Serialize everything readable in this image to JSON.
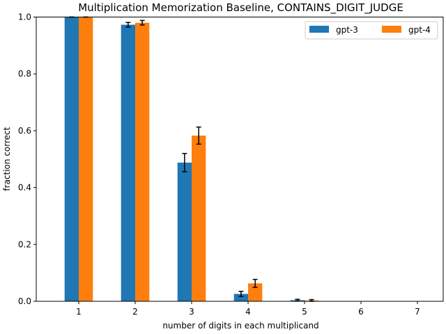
{
  "chart_data": {
    "type": "bar",
    "title": "Multiplication Memorization Baseline, CONTAINS_DIGIT_JUDGE",
    "xlabel": "number of digits in each multiplicand",
    "ylabel": "fraction correct",
    "categories": [
      "1",
      "2",
      "3",
      "4",
      "5",
      "6",
      "7"
    ],
    "ylim": [
      0,
      1.0
    ],
    "yticks": [
      "0.0",
      "0.2",
      "0.4",
      "0.6",
      "0.8",
      "1.0"
    ],
    "legend_position": "top-right",
    "grid": false,
    "series": [
      {
        "name": "gpt-3",
        "color": "#1f77b4",
        "values": [
          1.0,
          0.973,
          0.488,
          0.026,
          0.004,
          0.0,
          0.0
        ],
        "errors": [
          0.0,
          0.008,
          0.032,
          0.009,
          0.003,
          0.0,
          0.0
        ]
      },
      {
        "name": "gpt-4",
        "color": "#ff7f0e",
        "values": [
          1.0,
          0.98,
          0.583,
          0.063,
          0.003,
          0.0,
          0.0
        ],
        "errors": [
          0.0,
          0.008,
          0.03,
          0.014,
          0.003,
          0.0,
          0.0
        ]
      }
    ]
  }
}
